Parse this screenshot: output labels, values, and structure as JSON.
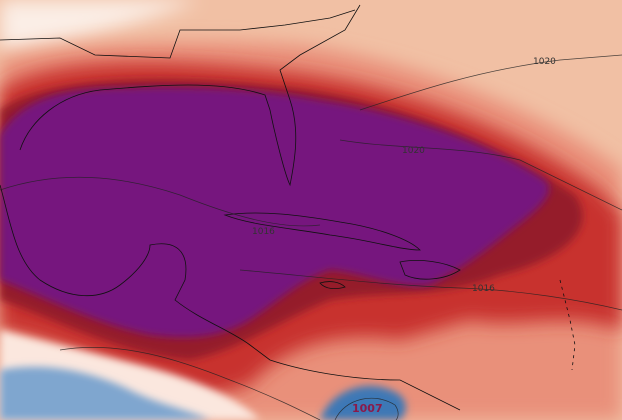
{
  "labels": [
    {
      "text": "1020"
    },
    {
      "text": "1020"
    },
    {
      "text": "1016"
    },
    {
      "text": "1016"
    },
    {
      "text": "1007"
    }
  ]
}
